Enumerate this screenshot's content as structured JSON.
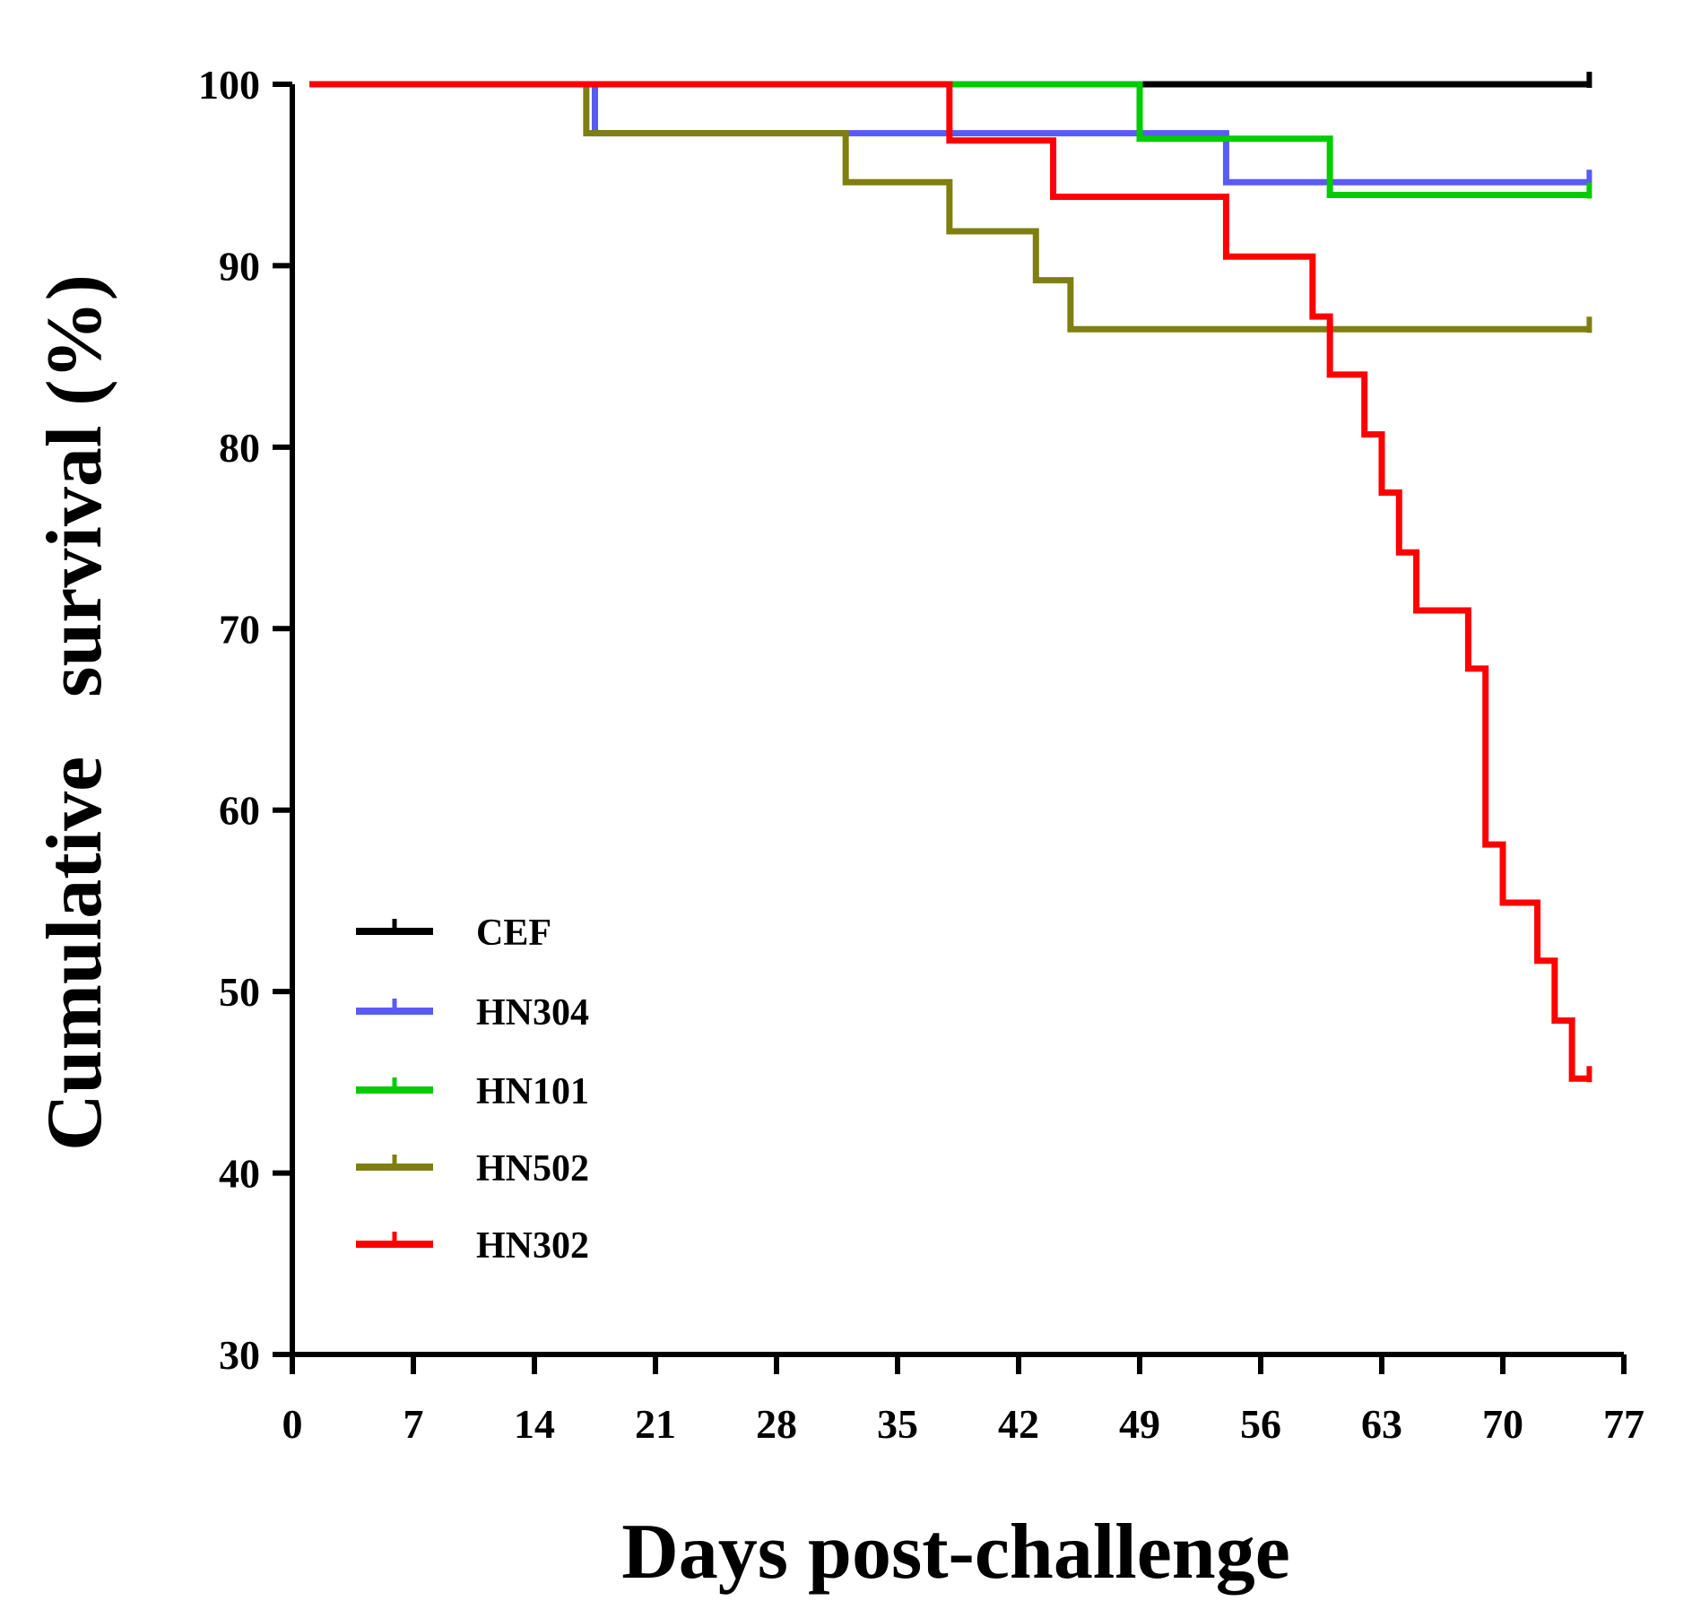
{
  "chart_data": {
    "type": "line",
    "subtype": "kaplan-meier step survival",
    "xlabel": "Days post-challenge",
    "ylabel": "Cumulative   survival (%)",
    "xlim": [
      0,
      77
    ],
    "ylim": [
      30,
      100
    ],
    "xticks": [
      0,
      7,
      14,
      21,
      28,
      35,
      42,
      49,
      56,
      63,
      70,
      77
    ],
    "yticks": [
      30,
      40,
      50,
      60,
      70,
      80,
      90,
      100
    ],
    "legend_position": "lower-left",
    "series": [
      {
        "name": "CEF",
        "color": "#000000",
        "x": [
          1,
          75
        ],
        "y": [
          100,
          100
        ]
      },
      {
        "name": "HN304",
        "color": "#5a5af5",
        "x": [
          1,
          17.5,
          54,
          75
        ],
        "y": [
          100,
          97.3,
          94.6,
          94.6
        ]
      },
      {
        "name": "HN101",
        "color": "#00cc00",
        "x": [
          1,
          49,
          60,
          75
        ],
        "y": [
          100,
          97,
          93.9,
          93.9
        ]
      },
      {
        "name": "HN502",
        "color": "#7f7f10",
        "x": [
          1,
          17,
          32,
          38,
          43,
          45,
          75
        ],
        "y": [
          100,
          97.3,
          94.6,
          91.9,
          89.2,
          86.5,
          86.5
        ]
      },
      {
        "name": "HN302",
        "color": "#ff0000",
        "x": [
          1,
          38,
          44,
          54,
          59,
          60,
          62,
          63,
          64,
          65,
          68,
          69,
          70,
          72,
          73,
          74,
          75
        ],
        "y": [
          100,
          96.9,
          93.8,
          90.5,
          87.2,
          84,
          80.7,
          77.5,
          74.2,
          71,
          67.8,
          58.1,
          54.9,
          51.7,
          48.4,
          45.2,
          45.2
        ]
      }
    ]
  }
}
